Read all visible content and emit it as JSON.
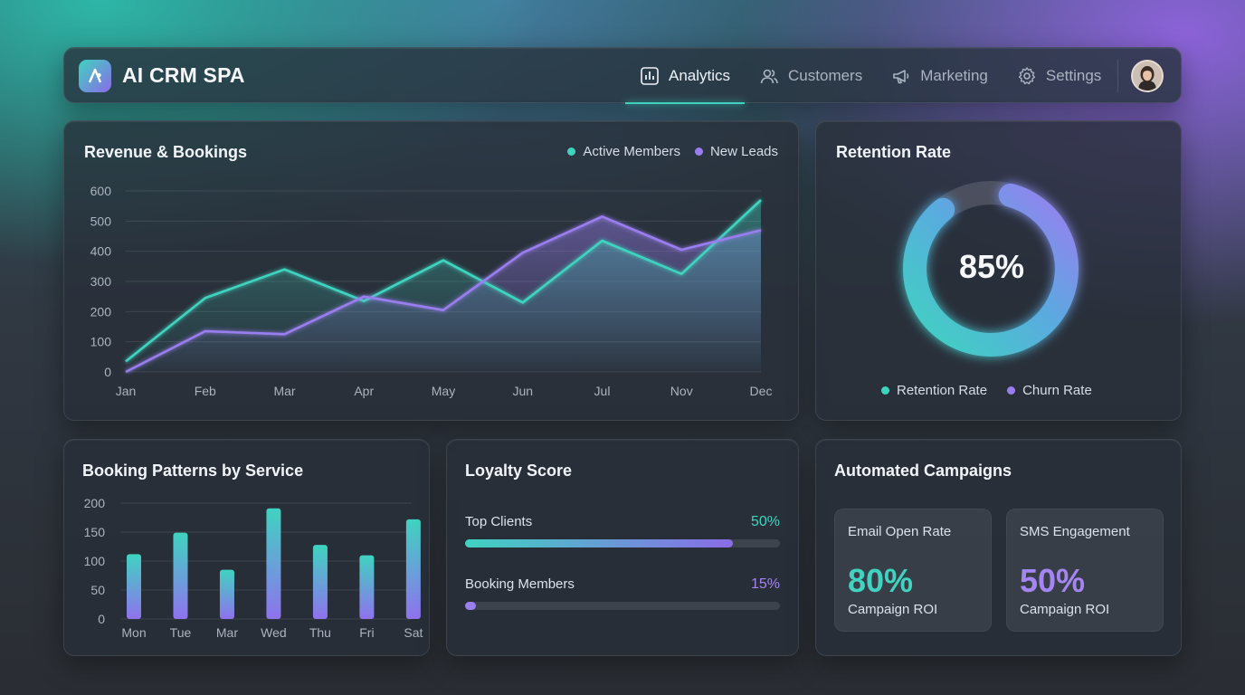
{
  "header": {
    "title": "AI CRM SPA",
    "nav": [
      {
        "label": "Analytics",
        "icon": "bar-chart-icon",
        "active": true
      },
      {
        "label": "Customers",
        "icon": "users-icon",
        "active": false
      },
      {
        "label": "Marketing",
        "icon": "megaphone-icon",
        "active": false
      },
      {
        "label": "Settings",
        "icon": "gear-icon",
        "active": false
      }
    ]
  },
  "colors": {
    "teal": "#3fd3c0",
    "purple": "#8a6be8"
  },
  "revenue": {
    "title": "Revenue & Bookings",
    "legend": [
      "Active Members",
      "New Leads"
    ]
  },
  "retention": {
    "title": "Retention Rate",
    "value_label": "85%",
    "legend": [
      "Retention Rate",
      "Churn Rate"
    ]
  },
  "booking": {
    "title": "Booking Patterns by Service"
  },
  "loyalty": {
    "title": "Loyalty Score",
    "rows": [
      {
        "label": "Top Clients",
        "pct": "50%",
        "fill": 0.85,
        "color": "#3fd3c0"
      },
      {
        "label": "Booking Members",
        "pct": "15%",
        "fill": 0.035,
        "color": "#9b7ff0"
      }
    ]
  },
  "campaigns": {
    "title": "Automated Campaigns",
    "tiles": [
      {
        "label": "Email Open Rate",
        "value": "80%",
        "sub": "Campaign ROI",
        "color": "#3fd3c0"
      },
      {
        "label": "SMS Engagement",
        "value": "50%",
        "sub": "Campaign ROI",
        "color": "#a585f2"
      }
    ]
  },
  "chart_data": [
    {
      "type": "area",
      "title": "Revenue & Bookings",
      "categories": [
        "Jan",
        "Feb",
        "Mar",
        "Apr",
        "May",
        "Jun",
        "Jul",
        "Nov",
        "Dec"
      ],
      "ylim": [
        0,
        600
      ],
      "yticks": [
        0,
        100,
        200,
        300,
        400,
        500,
        600
      ],
      "grid": true,
      "legend_position": "top-right",
      "series": [
        {
          "name": "Active Members",
          "color": "#3fd3c0",
          "values": [
            35,
            245,
            340,
            235,
            370,
            230,
            435,
            325,
            570
          ]
        },
        {
          "name": "New Leads",
          "color": "#9a7ef0",
          "values": [
            0,
            135,
            125,
            250,
            205,
            395,
            515,
            405,
            470
          ]
        }
      ]
    },
    {
      "type": "pie",
      "title": "Retention Rate",
      "slices": [
        {
          "name": "Retention Rate",
          "value": 85
        },
        {
          "name": "Churn Rate",
          "value": 15
        }
      ]
    },
    {
      "type": "bar",
      "title": "Booking Patterns by Service",
      "categories": [
        "Mon",
        "Tue",
        "Mar",
        "Wed",
        "Thu",
        "Fri",
        "Sat"
      ],
      "values": [
        112,
        149,
        85,
        191,
        128,
        110,
        172
      ],
      "ylim": [
        0,
        200
      ],
      "yticks": [
        0,
        50,
        100,
        150,
        200
      ],
      "grid": true
    }
  ]
}
